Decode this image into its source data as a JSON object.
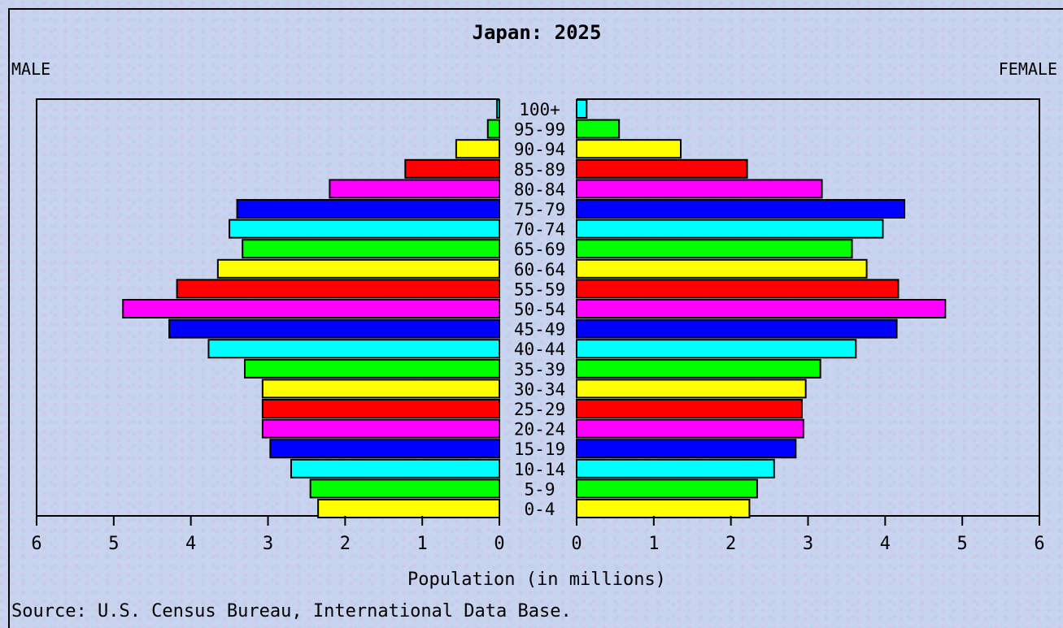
{
  "chart_data": {
    "type": "bar",
    "title": "Japan: 2025",
    "left_label": "MALE",
    "right_label": "FEMALE",
    "xlabel": "Population (in millions)",
    "source": "Source: U.S. Census Bureau, International Data Base.",
    "xlim": [
      0,
      6
    ],
    "x_ticks": [
      "6",
      "5",
      "4",
      "3",
      "2",
      "1",
      "0",
      "0",
      "1",
      "2",
      "3",
      "4",
      "5",
      "6"
    ],
    "categories": [
      "100+",
      "95-99",
      "90-94",
      "85-89",
      "80-84",
      "75-79",
      "70-74",
      "65-69",
      "60-64",
      "55-59",
      "50-54",
      "45-49",
      "40-44",
      "35-39",
      "30-34",
      "25-29",
      "20-24",
      "15-19",
      "10-14",
      "5-9",
      "0-4"
    ],
    "series": [
      {
        "name": "MALE",
        "values": [
          0.03,
          0.15,
          0.56,
          1.22,
          2.2,
          3.4,
          3.5,
          3.33,
          3.65,
          4.18,
          4.88,
          4.28,
          3.77,
          3.3,
          3.07,
          3.07,
          3.07,
          2.97,
          2.7,
          2.45,
          2.35
        ]
      },
      {
        "name": "FEMALE",
        "values": [
          0.13,
          0.55,
          1.35,
          2.21,
          3.18,
          4.25,
          3.97,
          3.57,
          3.76,
          4.17,
          4.78,
          4.15,
          3.62,
          3.16,
          2.97,
          2.92,
          2.94,
          2.84,
          2.56,
          2.34,
          2.24
        ]
      }
    ],
    "bar_colors": [
      "#ffff00",
      "#00ff00",
      "#00ffff",
      "#0000ff",
      "#ff00ff",
      "#ff0000"
    ],
    "bar_colors_order": "from the 0-4 bar upward, repeating"
  }
}
